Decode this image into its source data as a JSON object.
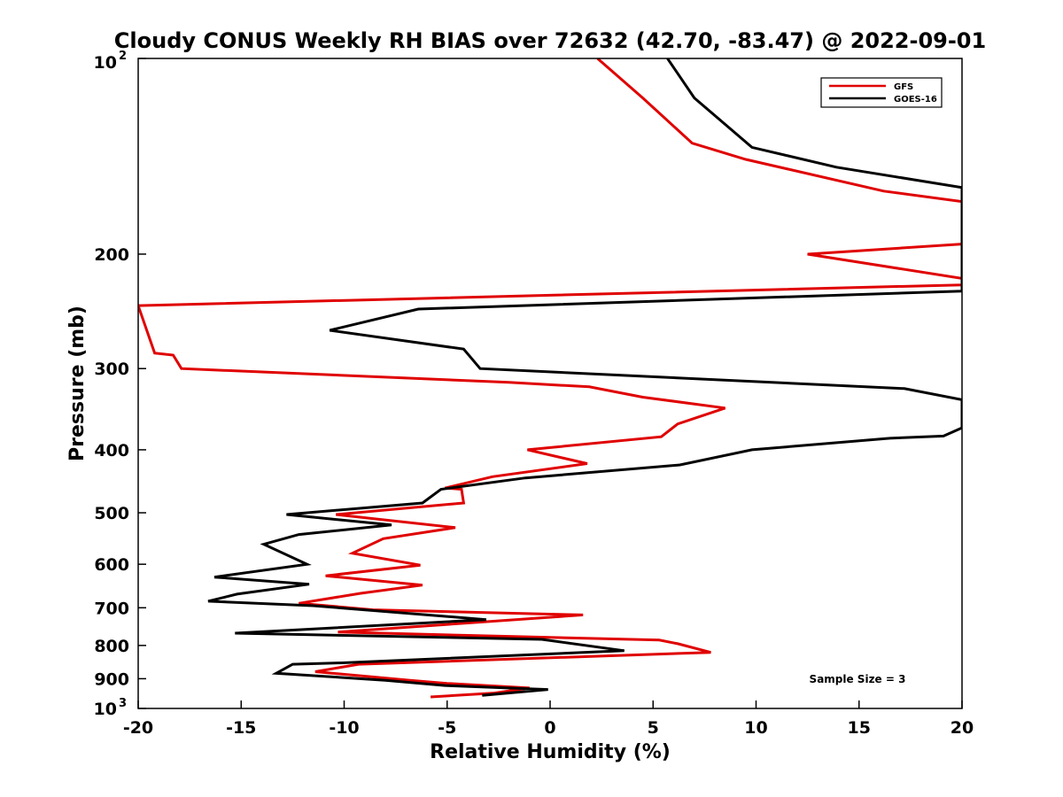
{
  "chart_data": {
    "type": "line",
    "title": "Cloudy CONUS Weekly RH BIAS over 72632 (42.70, -83.47) @ 2022-09-01",
    "xlabel": "Relative Humidity (%)",
    "ylabel": "Pressure (mb)",
    "xlim": [
      -20,
      20
    ],
    "ylim": [
      100,
      1000
    ],
    "yscale": "log",
    "y_reversed": true,
    "grid": false,
    "legend_position": "top-right",
    "x_tick_labels": [
      "-20",
      "-15",
      "-10",
      "-5",
      "0",
      "5",
      "10",
      "15",
      "20"
    ],
    "y_ticks": [
      {
        "value": 100,
        "label": "10",
        "exponent": "2"
      },
      {
        "value": 200,
        "label": "200"
      },
      {
        "value": 300,
        "label": "300"
      },
      {
        "value": 400,
        "label": "400"
      },
      {
        "value": 500,
        "label": "500"
      },
      {
        "value": 600,
        "label": "600"
      },
      {
        "value": 700,
        "label": "700"
      },
      {
        "value": 800,
        "label": "800"
      },
      {
        "value": 900,
        "label": "900"
      },
      {
        "value": 1000,
        "label": "10",
        "exponent": "3"
      }
    ],
    "annotation": "Sample Size = 3",
    "series": [
      {
        "name": "GFS",
        "color": "#e00000",
        "points": [
          [
            2.3,
            100
          ],
          [
            4.5,
            115
          ],
          [
            6.9,
            135
          ],
          [
            9.5,
            143
          ],
          [
            16.2,
            160
          ],
          [
            20,
            166
          ],
          [
            20,
            193
          ],
          [
            12.5,
            200
          ],
          [
            20,
            218
          ],
          [
            20,
            223
          ],
          [
            -20,
            240
          ],
          [
            -19.2,
            284
          ],
          [
            -18.3,
            286
          ],
          [
            -17.9,
            300
          ],
          [
            -2,
            315
          ],
          [
            1.9,
            320
          ],
          [
            4.5,
            332
          ],
          [
            8.5,
            345
          ],
          [
            6.2,
            365
          ],
          [
            5.4,
            382
          ],
          [
            -1.1,
            400
          ],
          [
            1.8,
            420
          ],
          [
            -2.8,
            440
          ],
          [
            -5.1,
            458
          ],
          [
            -4.3,
            460
          ],
          [
            -4.2,
            483
          ],
          [
            -10.4,
            503
          ],
          [
            -4.6,
            527
          ],
          [
            -8.1,
            548
          ],
          [
            -9.6,
            577
          ],
          [
            -6.3,
            602
          ],
          [
            -10.9,
            625
          ],
          [
            -6.2,
            646
          ],
          [
            -9.2,
            665
          ],
          [
            -12.2,
            689
          ],
          [
            -8.6,
            705
          ],
          [
            1.6,
            718
          ],
          [
            -10.3,
            763
          ],
          [
            5.3,
            785
          ],
          [
            6.2,
            795
          ],
          [
            7.8,
            820
          ],
          [
            -9.3,
            855
          ],
          [
            -11.4,
            878
          ],
          [
            -6.8,
            905
          ],
          [
            -5,
            915
          ],
          [
            -1,
            930
          ],
          [
            -2.7,
            947
          ],
          [
            -5.8,
            960
          ]
        ]
      },
      {
        "name": "GOES-16",
        "color": "#000000",
        "points": [
          [
            5.7,
            100
          ],
          [
            7,
            115
          ],
          [
            9.8,
            137
          ],
          [
            13.9,
            147
          ],
          [
            20,
            158
          ],
          [
            20,
            228
          ],
          [
            -6.4,
            243
          ],
          [
            -10.7,
            262
          ],
          [
            -4.2,
            280
          ],
          [
            -3.4,
            300
          ],
          [
            17.2,
            322
          ],
          [
            20,
            335
          ],
          [
            20,
            370
          ],
          [
            19.1,
            381
          ],
          [
            16.5,
            384
          ],
          [
            9.8,
            400
          ],
          [
            6.3,
            422
          ],
          [
            -1.2,
            442
          ],
          [
            -5.3,
            460
          ],
          [
            -6.2,
            483
          ],
          [
            -12.8,
            503
          ],
          [
            -7.7,
            522
          ],
          [
            -12.2,
            540
          ],
          [
            -13.9,
            559
          ],
          [
            -11.8,
            600
          ],
          [
            -16.3,
            628
          ],
          [
            -11.7,
            644
          ],
          [
            -15.2,
            667
          ],
          [
            -16.6,
            684
          ],
          [
            -11.5,
            695
          ],
          [
            -3.1,
            730
          ],
          [
            -15.3,
            766
          ],
          [
            -0.4,
            783
          ],
          [
            3.6,
            815
          ],
          [
            -10.2,
            851
          ],
          [
            -12.5,
            855
          ],
          [
            -13.3,
            883
          ],
          [
            -8,
            905
          ],
          [
            -5.1,
            922
          ],
          [
            -0.1,
            935
          ],
          [
            -3.3,
            955
          ]
        ]
      }
    ]
  }
}
